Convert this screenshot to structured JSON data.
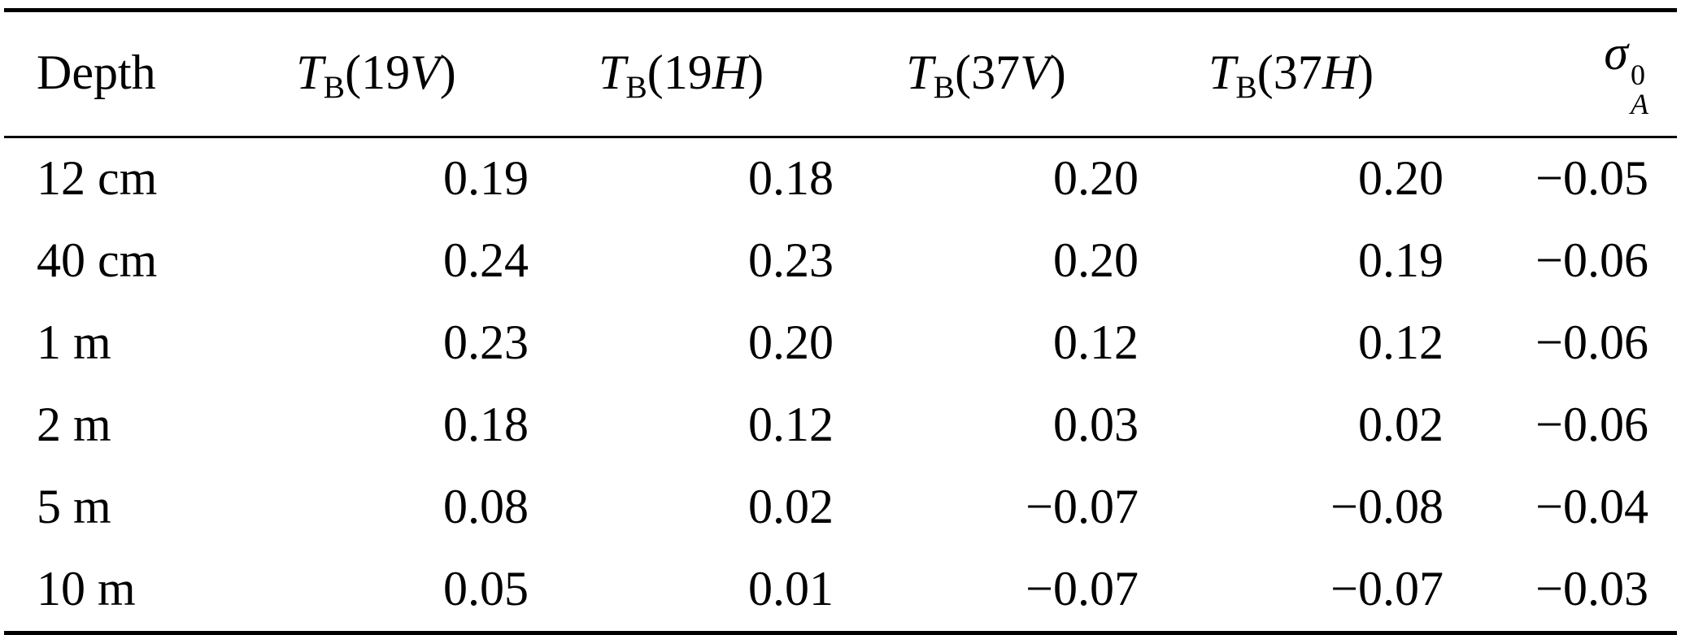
{
  "paper_table": {
    "header": {
      "depth": "Depth",
      "tb_cols": [
        {
          "symbol": "T",
          "subscript": "B",
          "open": "(",
          "freq": "19",
          "pol": "V",
          "close": ")"
        },
        {
          "symbol": "T",
          "subscript": "B",
          "open": "(",
          "freq": "19",
          "pol": "H",
          "close": ")"
        },
        {
          "symbol": "T",
          "subscript": "B",
          "open": "(",
          "freq": "37",
          "pol": "V",
          "close": ")"
        },
        {
          "symbol": "T",
          "subscript": "B",
          "open": "(",
          "freq": "37",
          "pol": "H",
          "close": ")"
        }
      ],
      "sigma": {
        "symbol": "σ",
        "sup": "0",
        "sub": "A"
      }
    },
    "rows": [
      {
        "depth": "12 cm",
        "values": [
          "0.19",
          "0.18",
          "0.20",
          "0.20",
          "−0.05"
        ]
      },
      {
        "depth": "40 cm",
        "values": [
          "0.24",
          "0.23",
          "0.20",
          "0.19",
          "−0.06"
        ]
      },
      {
        "depth": "1 m",
        "values": [
          "0.23",
          "0.20",
          "0.12",
          "0.12",
          "−0.06"
        ]
      },
      {
        "depth": "2 m",
        "values": [
          "0.18",
          "0.12",
          "0.03",
          "0.02",
          "−0.06"
        ]
      },
      {
        "depth": "5 m",
        "values": [
          "0.08",
          "0.02",
          "−0.07",
          "−0.08",
          "−0.04"
        ]
      },
      {
        "depth": "10 m",
        "values": [
          "0.05",
          "0.01",
          "−0.07",
          "−0.07",
          "−0.03"
        ]
      }
    ]
  }
}
